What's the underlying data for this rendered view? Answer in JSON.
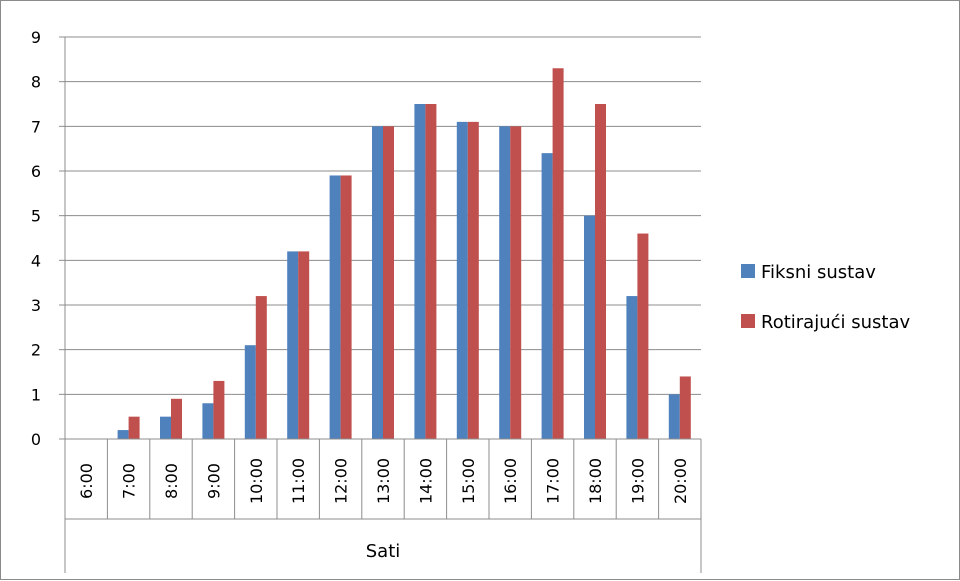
{
  "chart_data": {
    "type": "bar",
    "categories": [
      "6:00",
      "7:00",
      "8:00",
      "9:00",
      "10:00",
      "11:00",
      "12:00",
      "13:00",
      "14:00",
      "15:00",
      "16:00",
      "17:00",
      "18:00",
      "19:00",
      "20:00"
    ],
    "series": [
      {
        "name": "Fiksni sustav",
        "color": "#4f81bd",
        "values": [
          0,
          0.2,
          0.5,
          0.8,
          2.1,
          4.2,
          5.9,
          7.0,
          7.5,
          7.1,
          7.0,
          6.4,
          5.0,
          3.2,
          1.0
        ]
      },
      {
        "name": "Rotirajući sustav",
        "color": "#c0504d",
        "values": [
          0,
          0.5,
          0.9,
          1.3,
          3.2,
          4.2,
          5.9,
          7.0,
          7.5,
          7.1,
          7.0,
          8.3,
          7.5,
          4.6,
          1.4
        ]
      }
    ],
    "xlabel": "Sati",
    "ylabel": "",
    "ylim": [
      0,
      9
    ],
    "yticks": [
      "0",
      "1",
      "2",
      "3",
      "4",
      "5",
      "6",
      "7",
      "8",
      "9"
    ],
    "grid": true,
    "legend_position": "right"
  }
}
